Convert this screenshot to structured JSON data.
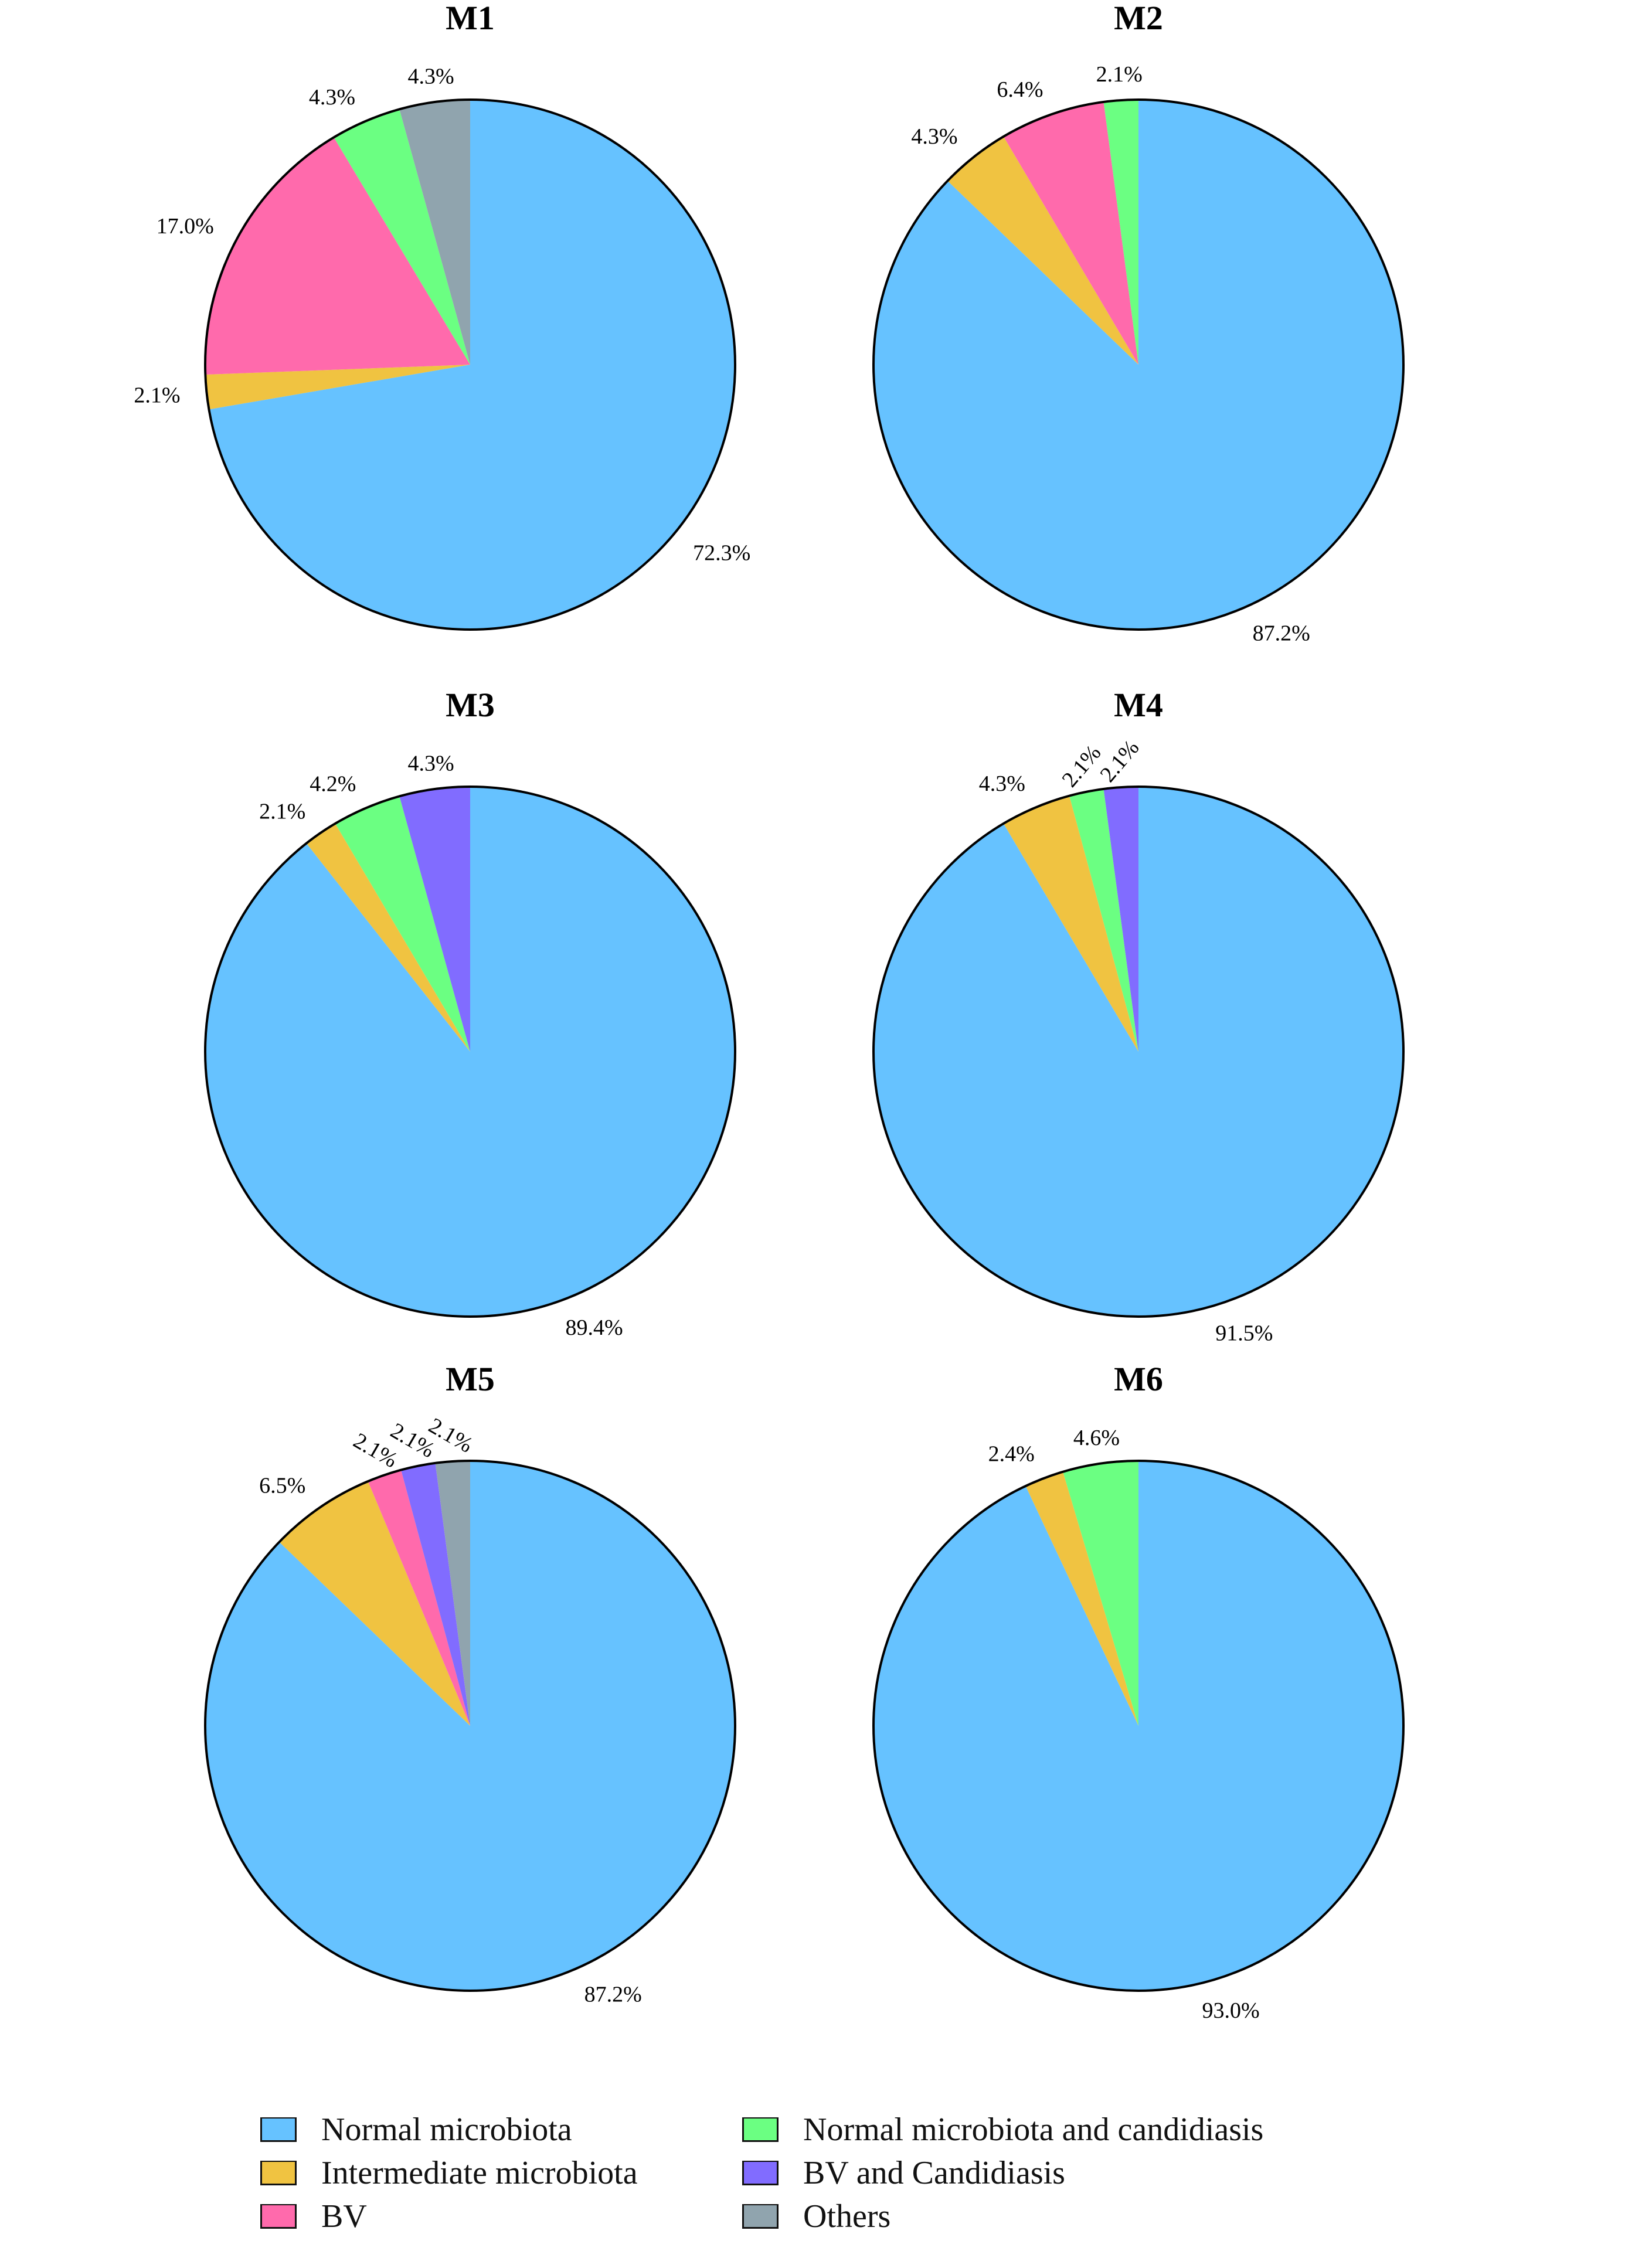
{
  "chart_data": {
    "type": "pie",
    "layout": "3x2 grid of pie charts with shared legend at bottom",
    "categories": [
      "Normal microbiota",
      "Intermediate microbiota",
      "BV",
      "Normal microbiota and candidiasis",
      "BV and Candidiasis",
      "Others"
    ],
    "colors": {
      "Normal microbiota": "#66c2ff",
      "Intermediate microbiota": "#f0c341",
      "BV": "#ff6aac",
      "Normal microbiota and candidiasis": "#6bff82",
      "BV and Candidiasis": "#816cff",
      "Others": "#90a4ae"
    },
    "start_angle": "12 o'clock, clockwise",
    "charts": [
      {
        "title": "M1",
        "center": [
          802,
          622
        ],
        "radius": 452,
        "slices": [
          {
            "category": "Normal microbiota",
            "value": 72.3,
            "label": "72.3%"
          },
          {
            "category": "Intermediate microbiota",
            "value": 2.1,
            "label": "2.1%"
          },
          {
            "category": "BV",
            "value": 17.0,
            "label": "17.0%"
          },
          {
            "category": "Normal microbiota and candidiasis",
            "value": 4.3,
            "label": "4.3%"
          },
          {
            "category": "Others",
            "value": 4.3,
            "label": "4.3%"
          }
        ]
      },
      {
        "title": "M2",
        "center": [
          1942,
          622
        ],
        "radius": 452,
        "slices": [
          {
            "category": "Normal microbiota",
            "value": 87.2,
            "label": "87.2%"
          },
          {
            "category": "Intermediate microbiota",
            "value": 4.3,
            "label": "4.3%"
          },
          {
            "category": "BV",
            "value": 6.4,
            "label": "6.4%"
          },
          {
            "category": "Normal microbiota and candidiasis",
            "value": 2.1,
            "label": "2.1%"
          }
        ]
      },
      {
        "title": "M3",
        "center": [
          802,
          1794
        ],
        "radius": 452,
        "slices": [
          {
            "category": "Normal microbiota",
            "value": 89.4,
            "label": "89.4%"
          },
          {
            "category": "Intermediate microbiota",
            "value": 2.1,
            "label": "2.1%"
          },
          {
            "category": "Normal microbiota and candidiasis",
            "value": 4.2,
            "label": "4.2%"
          },
          {
            "category": "BV and Candidiasis",
            "value": 4.3,
            "label": "4.3%"
          }
        ]
      },
      {
        "title": "M4",
        "center": [
          1942,
          1794
        ],
        "radius": 452,
        "slices": [
          {
            "category": "Normal microbiota",
            "value": 91.5,
            "label": "91.5%"
          },
          {
            "category": "Intermediate microbiota",
            "value": 4.3,
            "label": "4.3%"
          },
          {
            "category": "Normal microbiota and candidiasis",
            "value": 2.1,
            "label": "2.1%",
            "rotate": -50
          },
          {
            "category": "BV and Candidiasis",
            "value": 2.1,
            "label": "2.1%",
            "rotate": -50
          }
        ]
      },
      {
        "title": "M5",
        "center": [
          802,
          2944
        ],
        "radius": 452,
        "slices": [
          {
            "category": "Normal microbiota",
            "value": 87.2,
            "label": "87.2%"
          },
          {
            "category": "Intermediate microbiota",
            "value": 6.5,
            "label": "6.5%"
          },
          {
            "category": "BV",
            "value": 2.1,
            "label": "2.1%",
            "rotate": 30
          },
          {
            "category": "BV and Candidiasis",
            "value": 2.1,
            "label": "2.1%",
            "rotate": 30
          },
          {
            "category": "Others",
            "value": 2.1,
            "label": "2.1%",
            "rotate": 30
          }
        ]
      },
      {
        "title": "M6",
        "center": [
          1942,
          2944
        ],
        "radius": 452,
        "slices": [
          {
            "category": "Normal microbiota",
            "value": 93.0,
            "label": "93.0%"
          },
          {
            "category": "Intermediate microbiota",
            "value": 2.4,
            "label": "2.4%"
          },
          {
            "category": "Normal microbiota and candidiasis",
            "value": 4.6,
            "label": "4.6%"
          }
        ]
      }
    ],
    "legend": {
      "position": "bottom, two columns",
      "entries": [
        {
          "label": "Normal microbiota",
          "color": "#66c2ff"
        },
        {
          "label": "Intermediate microbiota",
          "color": "#f0c341"
        },
        {
          "label": "BV",
          "color": "#ff6aac"
        },
        {
          "label": "Normal microbiota and candidiasis",
          "color": "#6bff82"
        },
        {
          "label": "BV and Candidiasis",
          "color": "#816cff"
        },
        {
          "label": "Others",
          "color": "#90a4ae"
        }
      ]
    }
  }
}
